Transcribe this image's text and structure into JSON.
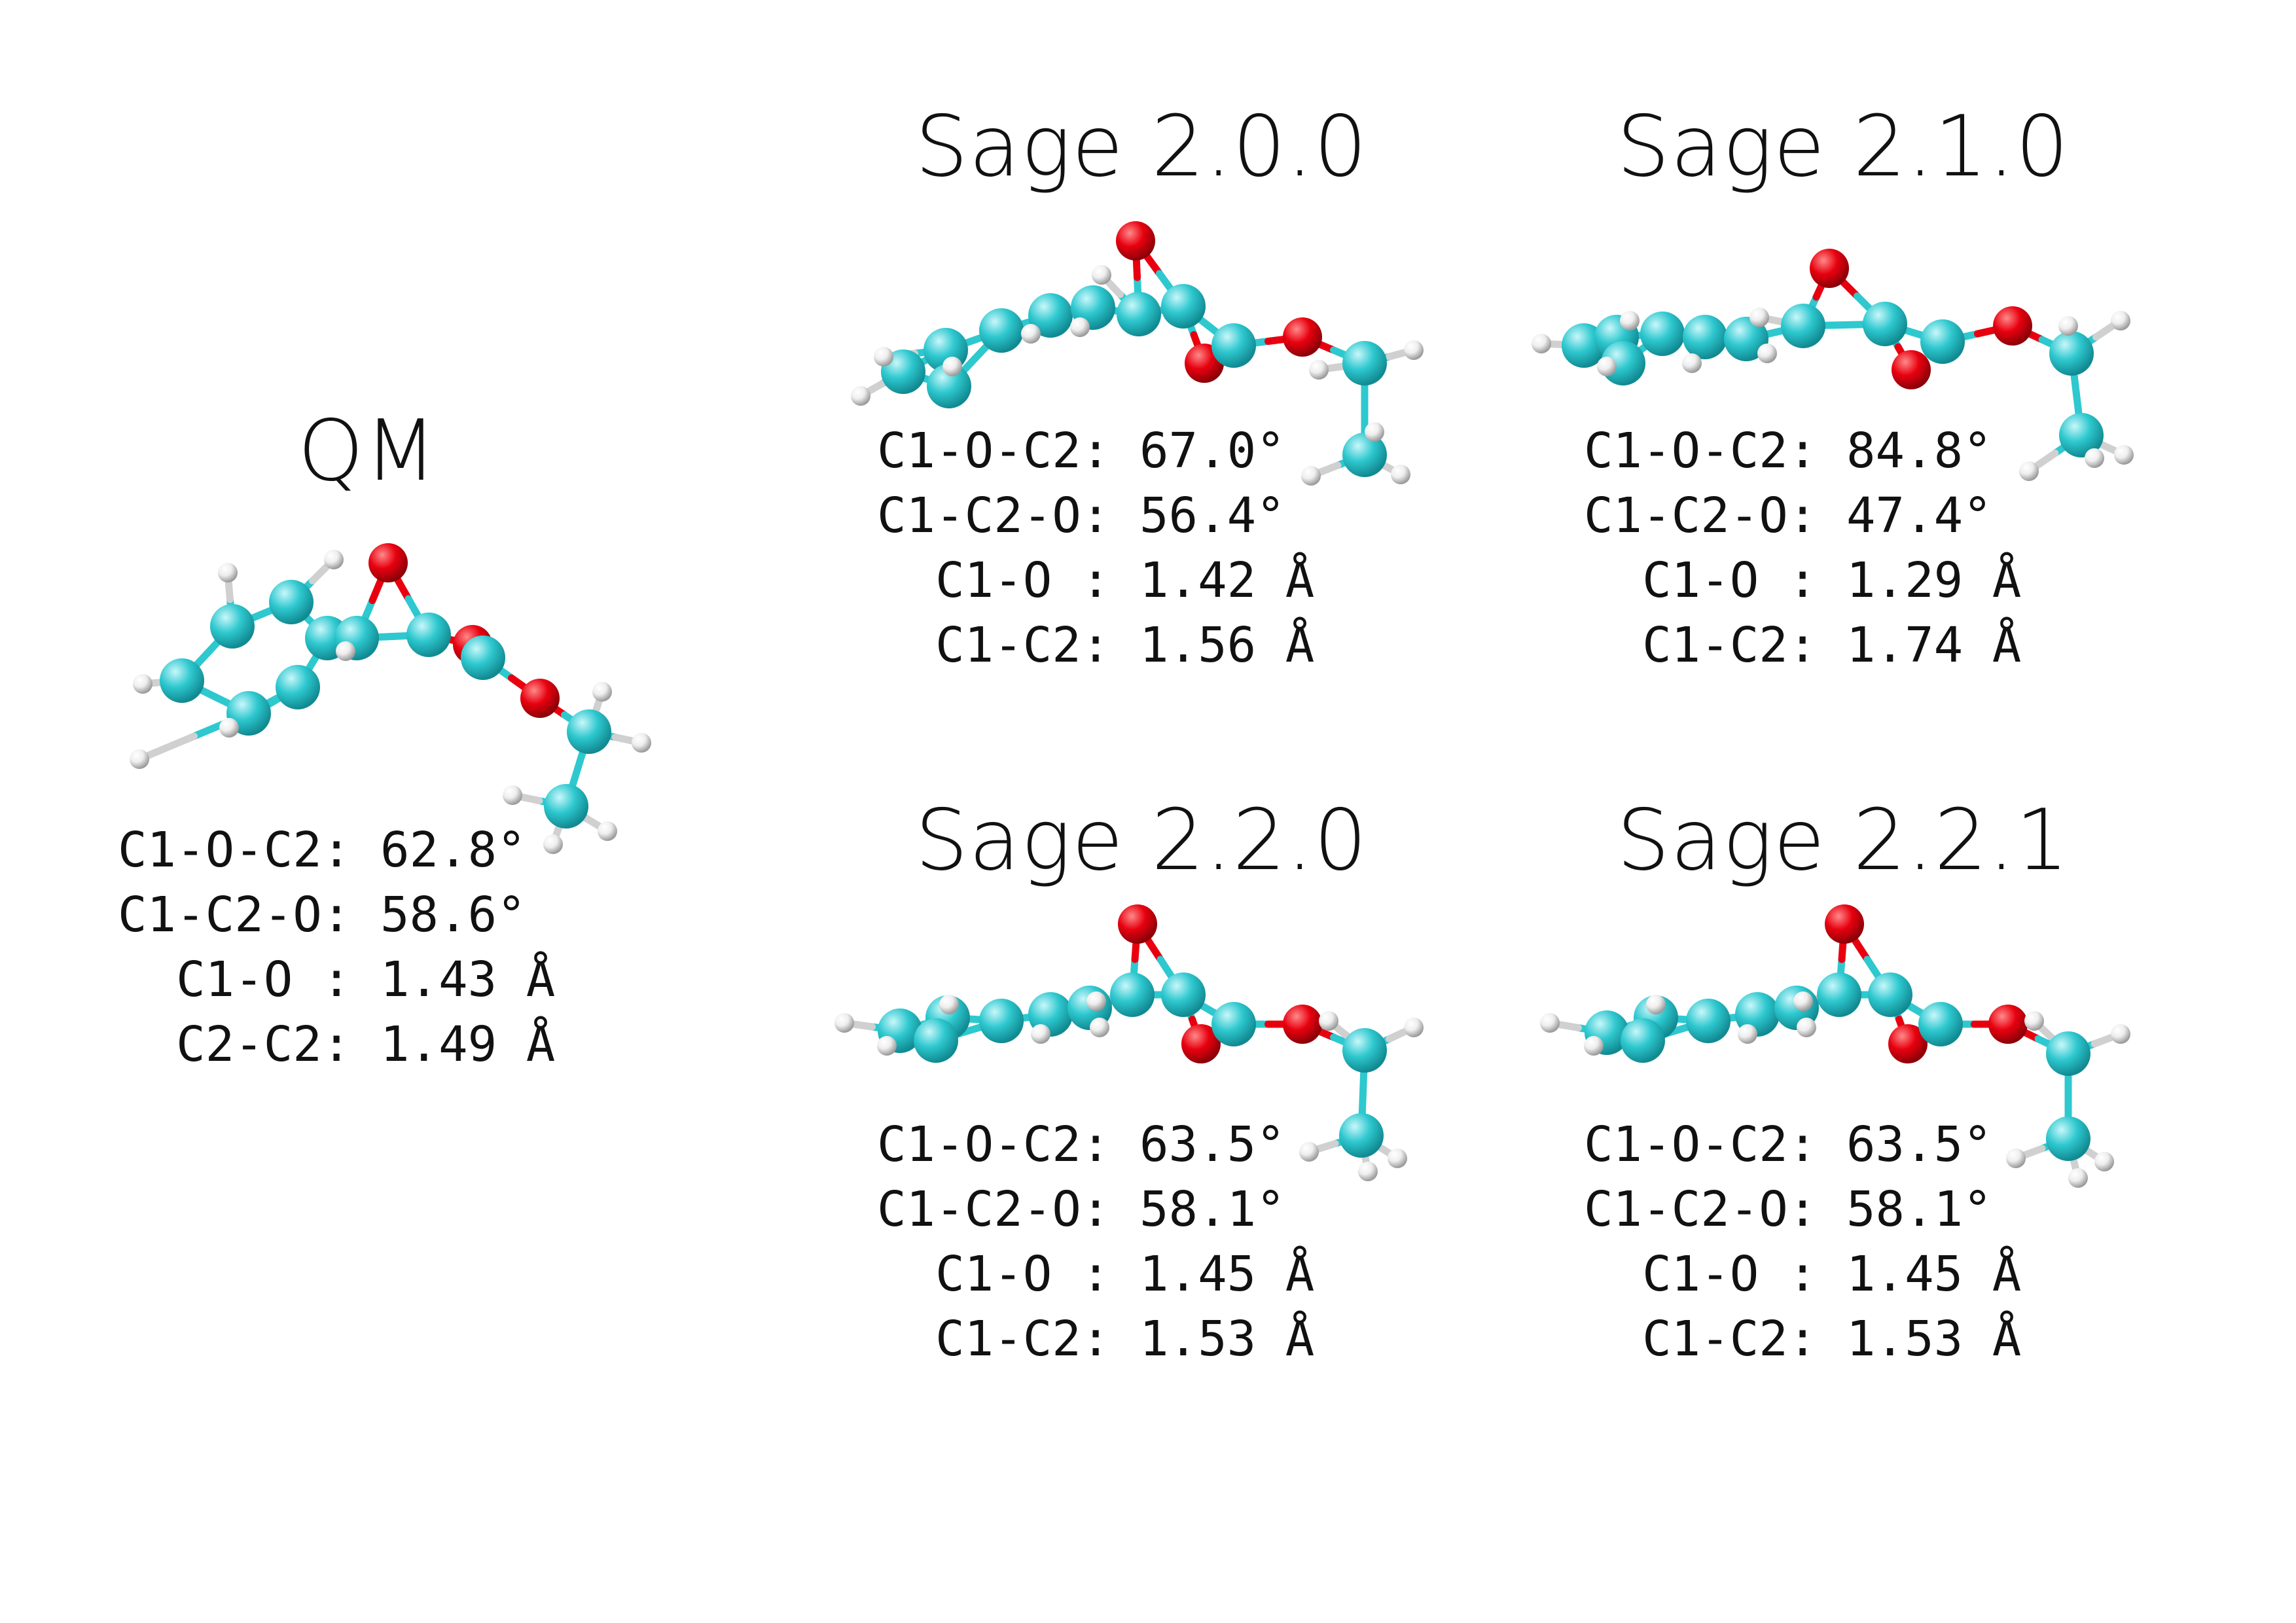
{
  "colors": {
    "carbon": "#2ec8cf",
    "oxygen": "#e8000f",
    "hydrogen": "#f2f2f2",
    "text": "#111111",
    "background": "#ffffff"
  },
  "panels": [
    {
      "id": "qm",
      "title": "QM",
      "lines": [
        "C1-O-C2: 62.8°",
        "C1-C2-O: 58.6°",
        "  C1-O : 1.43 Å",
        "  C2-C2: 1.49 Å"
      ]
    },
    {
      "id": "sage200",
      "title": "Sage 2.0.0",
      "lines": [
        "C1-O-C2: 67.0°",
        "C1-C2-O: 56.4°",
        "  C1-O : 1.42 Å",
        "  C1-C2: 1.56 Å"
      ]
    },
    {
      "id": "sage210",
      "title": "Sage 2.1.0",
      "lines": [
        "C1-O-C2: 84.8°",
        "C1-C2-O: 47.4°",
        "  C1-O : 1.29 Å",
        "  C1-C2: 1.74 Å"
      ]
    },
    {
      "id": "sage220",
      "title": "Sage 2.2.0",
      "lines": [
        "C1-O-C2: 63.5°",
        "C1-C2-O: 58.1°",
        "  C1-O : 1.45 Å",
        "  C1-C2: 1.53 Å"
      ]
    },
    {
      "id": "sage221",
      "title": "Sage 2.2.1",
      "lines": [
        "C1-O-C2: 63.5°",
        "C1-C2-O: 58.1°",
        "  C1-O : 1.45 Å",
        "  C1-C2: 1.53 Å"
      ]
    }
  ]
}
